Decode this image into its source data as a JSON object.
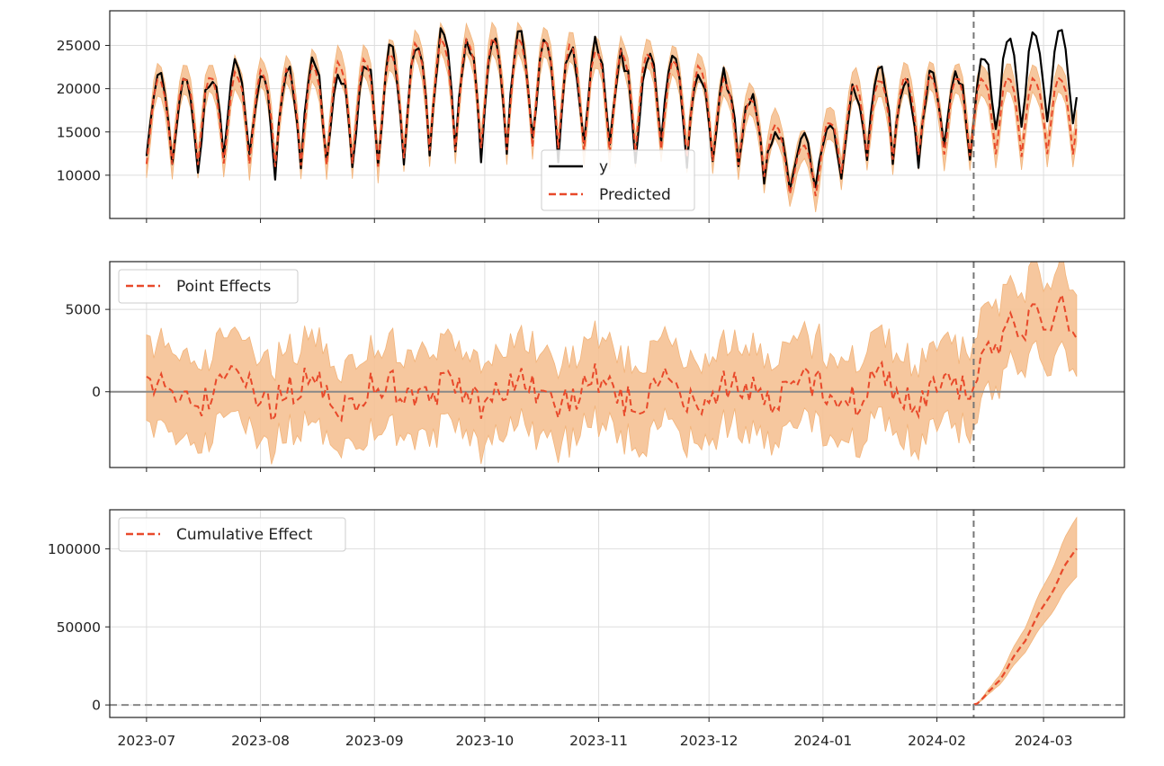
{
  "colors": {
    "observed": "#000000",
    "predicted": "#e8492a",
    "band": "#f5c193",
    "band_stroke": "#f2b47a",
    "grid": "#dddddd",
    "intervention_line": "#777777",
    "zero_line": "#888888",
    "axis": "#222222"
  },
  "chart_data": [
    {
      "type": "line",
      "title": "",
      "xlabel": "",
      "ylabel": "",
      "ylim": [
        5000,
        29000
      ],
      "yticks": [
        10000,
        15000,
        20000,
        25000
      ],
      "ytick_labels": [
        "10000",
        "15000",
        "20000",
        "25000"
      ],
      "legend": {
        "placement": "center-bottom",
        "entries": [
          {
            "label": "y",
            "style": "solid"
          },
          {
            "label": "Predicted",
            "style": "dashed"
          }
        ]
      },
      "intervention_date": "2024-02-11",
      "series": [
        {
          "name": "y",
          "style": "solid",
          "description": "weekly-seasonal daily series; pre-period tracks Predicted; post-period peaks ~22000-26000 vs predicted ~19000-20500"
        },
        {
          "name": "Predicted",
          "style": "dashed",
          "band": "95% interval"
        }
      ],
      "generator": {
        "start": "2023-07-01",
        "end": "2024-03-10",
        "weekly_dips": [
          -1.0,
          -0.2,
          0.6,
          1.0,
          0.9,
          0.6,
          -0.1
        ],
        "level_points": [
          [
            "2023-07-01",
            16200
          ],
          [
            "2023-08-01",
            16600
          ],
          [
            "2023-09-01",
            17200
          ],
          [
            "2023-09-15",
            19200
          ],
          [
            "2023-10-01",
            19300
          ],
          [
            "2023-10-15",
            19600
          ],
          [
            "2023-11-01",
            18400
          ],
          [
            "2023-11-15",
            18600
          ],
          [
            "2023-12-01",
            17000
          ],
          [
            "2023-12-15",
            14200
          ],
          [
            "2023-12-25",
            10000
          ],
          [
            "2024-01-01",
            11500
          ],
          [
            "2024-01-10",
            16400
          ],
          [
            "2024-02-01",
            16800
          ],
          [
            "2024-03-10",
            16800
          ]
        ],
        "amp_points": [
          [
            "2023-07-01",
            4900
          ],
          [
            "2023-09-15",
            6800
          ],
          [
            "2023-10-15",
            6700
          ],
          [
            "2023-12-01",
            5400
          ],
          [
            "2023-12-25",
            3200
          ],
          [
            "2024-01-10",
            4800
          ],
          [
            "2024-03-10",
            4800
          ]
        ],
        "post_effect_points": [
          [
            "2024-02-11",
            500
          ],
          [
            "2024-02-16",
            3200
          ],
          [
            "2024-02-25",
            4600
          ],
          [
            "2024-03-10",
            4900
          ]
        ],
        "predicted_band_halfwidth": 1700
      }
    },
    {
      "type": "line",
      "title": "",
      "xlabel": "",
      "ylabel": "",
      "ylim": [
        -4600,
        7900
      ],
      "yticks": [
        0,
        5000
      ],
      "ytick_labels": [
        "0",
        "5000"
      ],
      "legend": {
        "placement": "top-left",
        "entries": [
          {
            "label": "Point Effects",
            "style": "dashed"
          }
        ]
      },
      "intervention_date": "2024-02-11",
      "zero_line": true,
      "series": [
        {
          "name": "Point Effects",
          "style": "dashed",
          "band": "95% interval",
          "description": "fluctuates around 0 (about -2000 to +1800) pre-period, rises to ~2000-5500 after 2024-02-11"
        }
      ]
    },
    {
      "type": "line",
      "title": "",
      "xlabel": "",
      "ylabel": "",
      "ylim": [
        -8000,
        125000
      ],
      "yticks": [
        0,
        50000,
        100000
      ],
      "ytick_labels": [
        "0",
        "50000",
        "100000"
      ],
      "legend": {
        "placement": "top-left",
        "entries": [
          {
            "label": "Cumulative Effect",
            "style": "dashed"
          }
        ]
      },
      "intervention_date": "2024-02-11",
      "zero_line": true,
      "series": [
        {
          "name": "Cumulative Effect",
          "style": "dashed",
          "band": "95% interval",
          "start_value": 0,
          "end_value": 100000,
          "end_band": [
            82000,
            120000
          ]
        }
      ]
    }
  ],
  "x_axis": {
    "tick_dates": [
      "2023-07-01",
      "2023-08-01",
      "2023-09-01",
      "2023-10-01",
      "2023-11-01",
      "2023-12-01",
      "2024-01-01",
      "2024-02-01",
      "2024-03-01"
    ],
    "tick_labels": [
      "2023-07",
      "2023-08",
      "2023-09",
      "2023-10",
      "2023-11",
      "2023-12",
      "2024-01",
      "2024-02",
      "2024-03"
    ],
    "range": [
      "2023-06-21",
      "2024-03-23"
    ]
  }
}
